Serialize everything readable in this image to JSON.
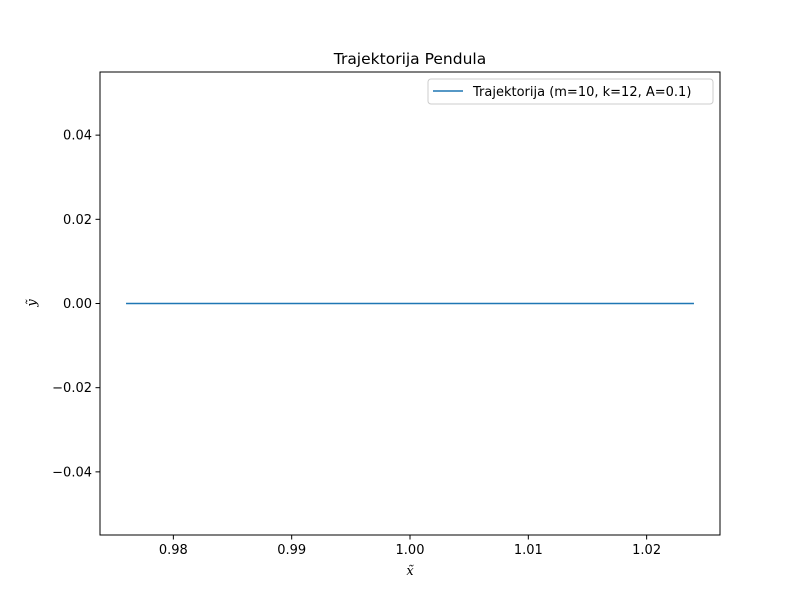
{
  "chart_data": {
    "type": "line",
    "title": "Trajektorija Pendula",
    "xlabel": "x̃",
    "ylabel": "ỹ",
    "xlim": [
      0.9738,
      1.0262
    ],
    "ylim": [
      -0.055,
      0.055
    ],
    "x_ticks": [
      0.98,
      0.99,
      1.0,
      1.01,
      1.02
    ],
    "x_tick_labels": [
      "0.98",
      "0.99",
      "1.00",
      "1.01",
      "1.02"
    ],
    "y_ticks": [
      -0.04,
      -0.02,
      0.0,
      0.02,
      0.04
    ],
    "y_tick_labels": [
      "−0.04",
      "−0.02",
      "0.00",
      "0.02",
      "0.04"
    ],
    "grid": false,
    "legend_position": "top-right",
    "series": [
      {
        "name": "Trajektorija (m=10, k=12, A=0.1)",
        "color": "#1f77b4",
        "x": [
          0.976,
          1.024
        ],
        "y": [
          0.0,
          0.0
        ]
      }
    ]
  }
}
